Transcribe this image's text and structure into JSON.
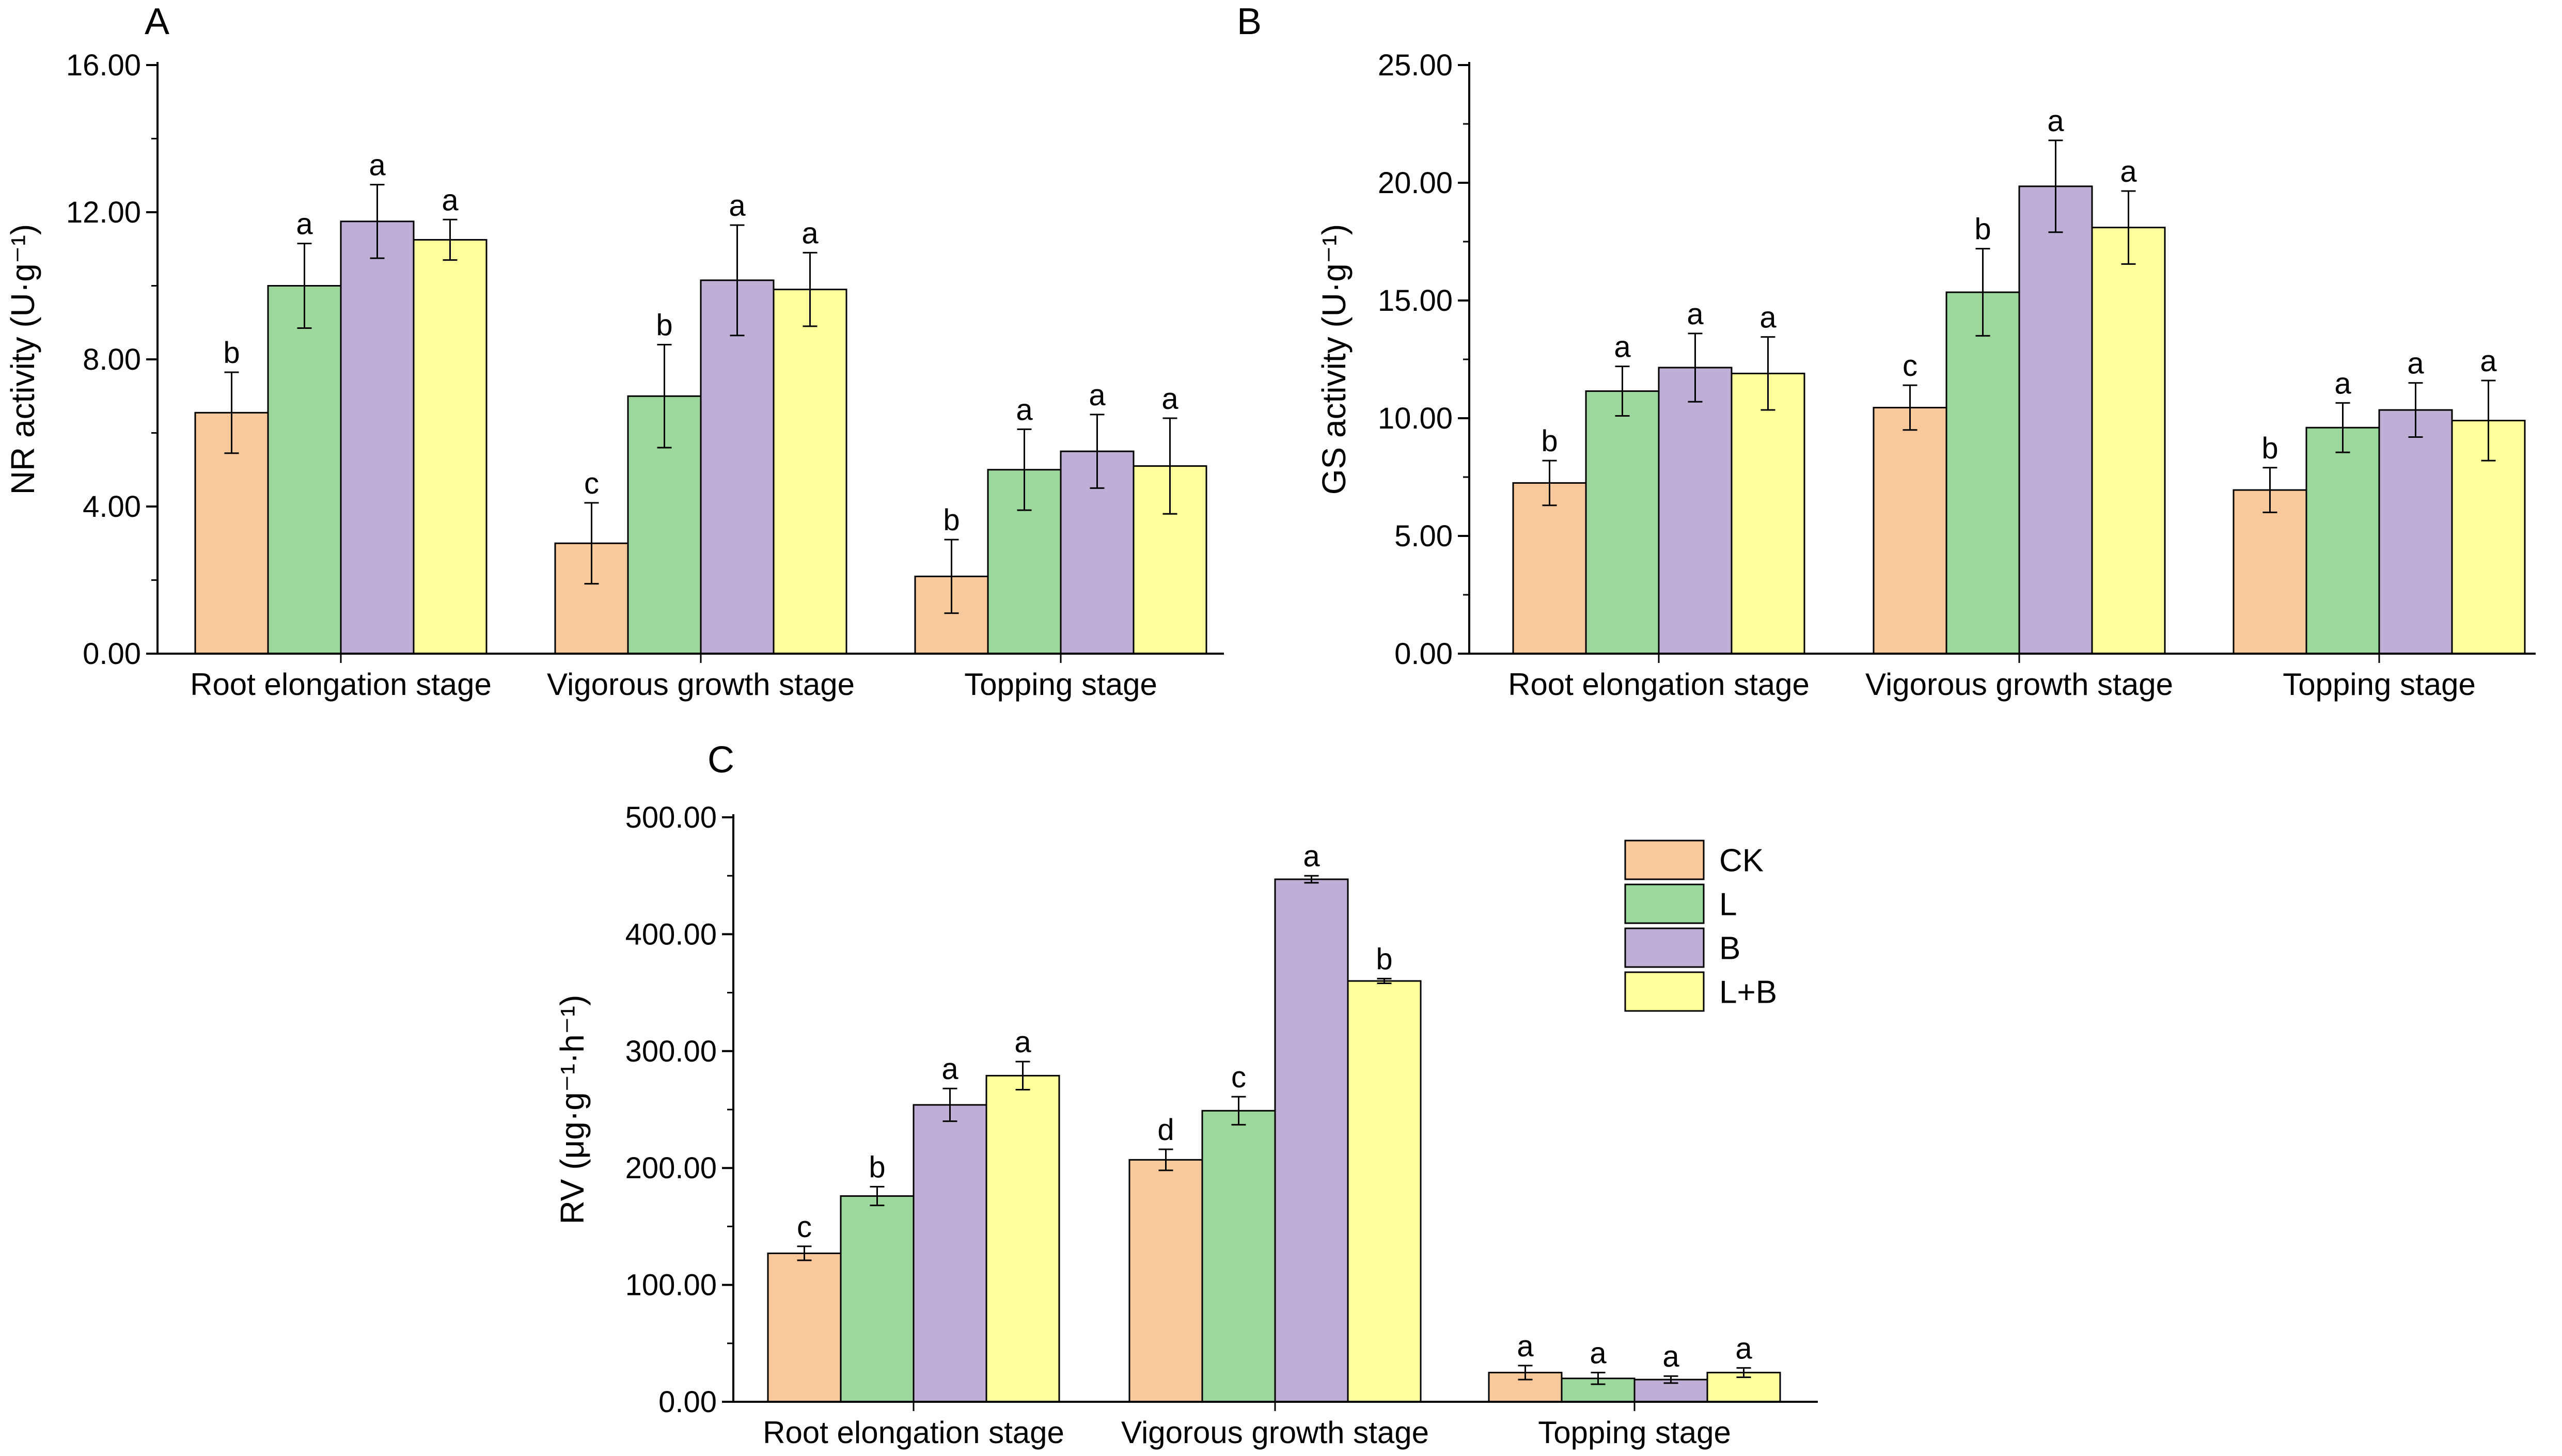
{
  "series_colors": {
    "CK": "#F9C89B",
    "L": "#9CD79C",
    "B": "#BFAED6",
    "L+B": "#FFFF9C"
  },
  "legend": {
    "entries": [
      "CK",
      "L",
      "B",
      "L+B"
    ]
  },
  "chart_data": [
    {
      "id": "A",
      "type": "bar",
      "panel_label": "A",
      "ylabel": "NR activity (U·g⁻¹)",
      "ylim": [
        0,
        16
      ],
      "yticks": [
        "0.00",
        "4.00",
        "8.00",
        "12.00",
        "16.00"
      ],
      "categories": [
        "Root elongation stage",
        "Vigorous growth stage",
        "Topping stage"
      ],
      "series": [
        {
          "name": "CK",
          "values": [
            6.55,
            3.0,
            2.1
          ],
          "errors": [
            1.1,
            1.1,
            1.0
          ],
          "letters": [
            "b",
            "c",
            "b"
          ]
        },
        {
          "name": "L",
          "values": [
            10.0,
            7.0,
            5.0
          ],
          "errors": [
            1.15,
            1.4,
            1.1
          ],
          "letters": [
            "a",
            "b",
            "a"
          ]
        },
        {
          "name": "B",
          "values": [
            11.75,
            10.15,
            5.5
          ],
          "errors": [
            1.0,
            1.5,
            1.0
          ],
          "letters": [
            "a",
            "a",
            "a"
          ]
        },
        {
          "name": "L+B",
          "values": [
            11.25,
            9.9,
            5.1
          ],
          "errors": [
            0.55,
            1.0,
            1.3
          ],
          "letters": [
            "a",
            "a",
            "a"
          ]
        }
      ]
    },
    {
      "id": "B",
      "type": "bar",
      "panel_label": "B",
      "ylabel": "GS activity (U·g⁻¹)",
      "ylim": [
        0,
        25
      ],
      "yticks": [
        "0.00",
        "5.00",
        "10.00",
        "15.00",
        "20.00",
        "25.00"
      ],
      "categories": [
        "Root elongation stage",
        "Vigorous growth stage",
        "Topping stage"
      ],
      "series": [
        {
          "name": "CK",
          "values": [
            7.25,
            10.45,
            6.95
          ],
          "errors": [
            0.95,
            0.95,
            0.95
          ],
          "letters": [
            "b",
            "c",
            "b"
          ]
        },
        {
          "name": "L",
          "values": [
            11.15,
            15.35,
            9.6
          ],
          "errors": [
            1.05,
            1.85,
            1.05
          ],
          "letters": [
            "a",
            "b",
            "a"
          ]
        },
        {
          "name": "B",
          "values": [
            12.15,
            19.85,
            10.35
          ],
          "errors": [
            1.45,
            1.95,
            1.15
          ],
          "letters": [
            "a",
            "a",
            "a"
          ]
        },
        {
          "name": "L+B",
          "values": [
            11.9,
            18.1,
            9.9
          ],
          "errors": [
            1.55,
            1.55,
            1.7
          ],
          "letters": [
            "a",
            "a",
            "a"
          ]
        }
      ]
    },
    {
      "id": "C",
      "type": "bar",
      "panel_label": "C",
      "ylabel": "RV (μg·g⁻¹·h⁻¹)",
      "ylim": [
        0,
        500
      ],
      "yticks": [
        "0.00",
        "100.00",
        "200.00",
        "300.00",
        "400.00",
        "500.00"
      ],
      "categories": [
        "Root elongation stage",
        "Vigorous growth stage",
        "Topping stage"
      ],
      "series": [
        {
          "name": "CK",
          "values": [
            127,
            207,
            25
          ],
          "errors": [
            6,
            9,
            6
          ],
          "letters": [
            "c",
            "d",
            "a"
          ]
        },
        {
          "name": "L",
          "values": [
            176,
            249,
            20
          ],
          "errors": [
            8,
            12,
            5
          ],
          "letters": [
            "b",
            "c",
            "a"
          ]
        },
        {
          "name": "B",
          "values": [
            254,
            447,
            19
          ],
          "errors": [
            14,
            3,
            3
          ],
          "letters": [
            "a",
            "a",
            "a"
          ]
        },
        {
          "name": "L+B",
          "values": [
            279,
            360,
            25
          ],
          "errors": [
            12,
            2,
            4
          ],
          "letters": [
            "a",
            "b",
            "a"
          ]
        }
      ]
    }
  ]
}
